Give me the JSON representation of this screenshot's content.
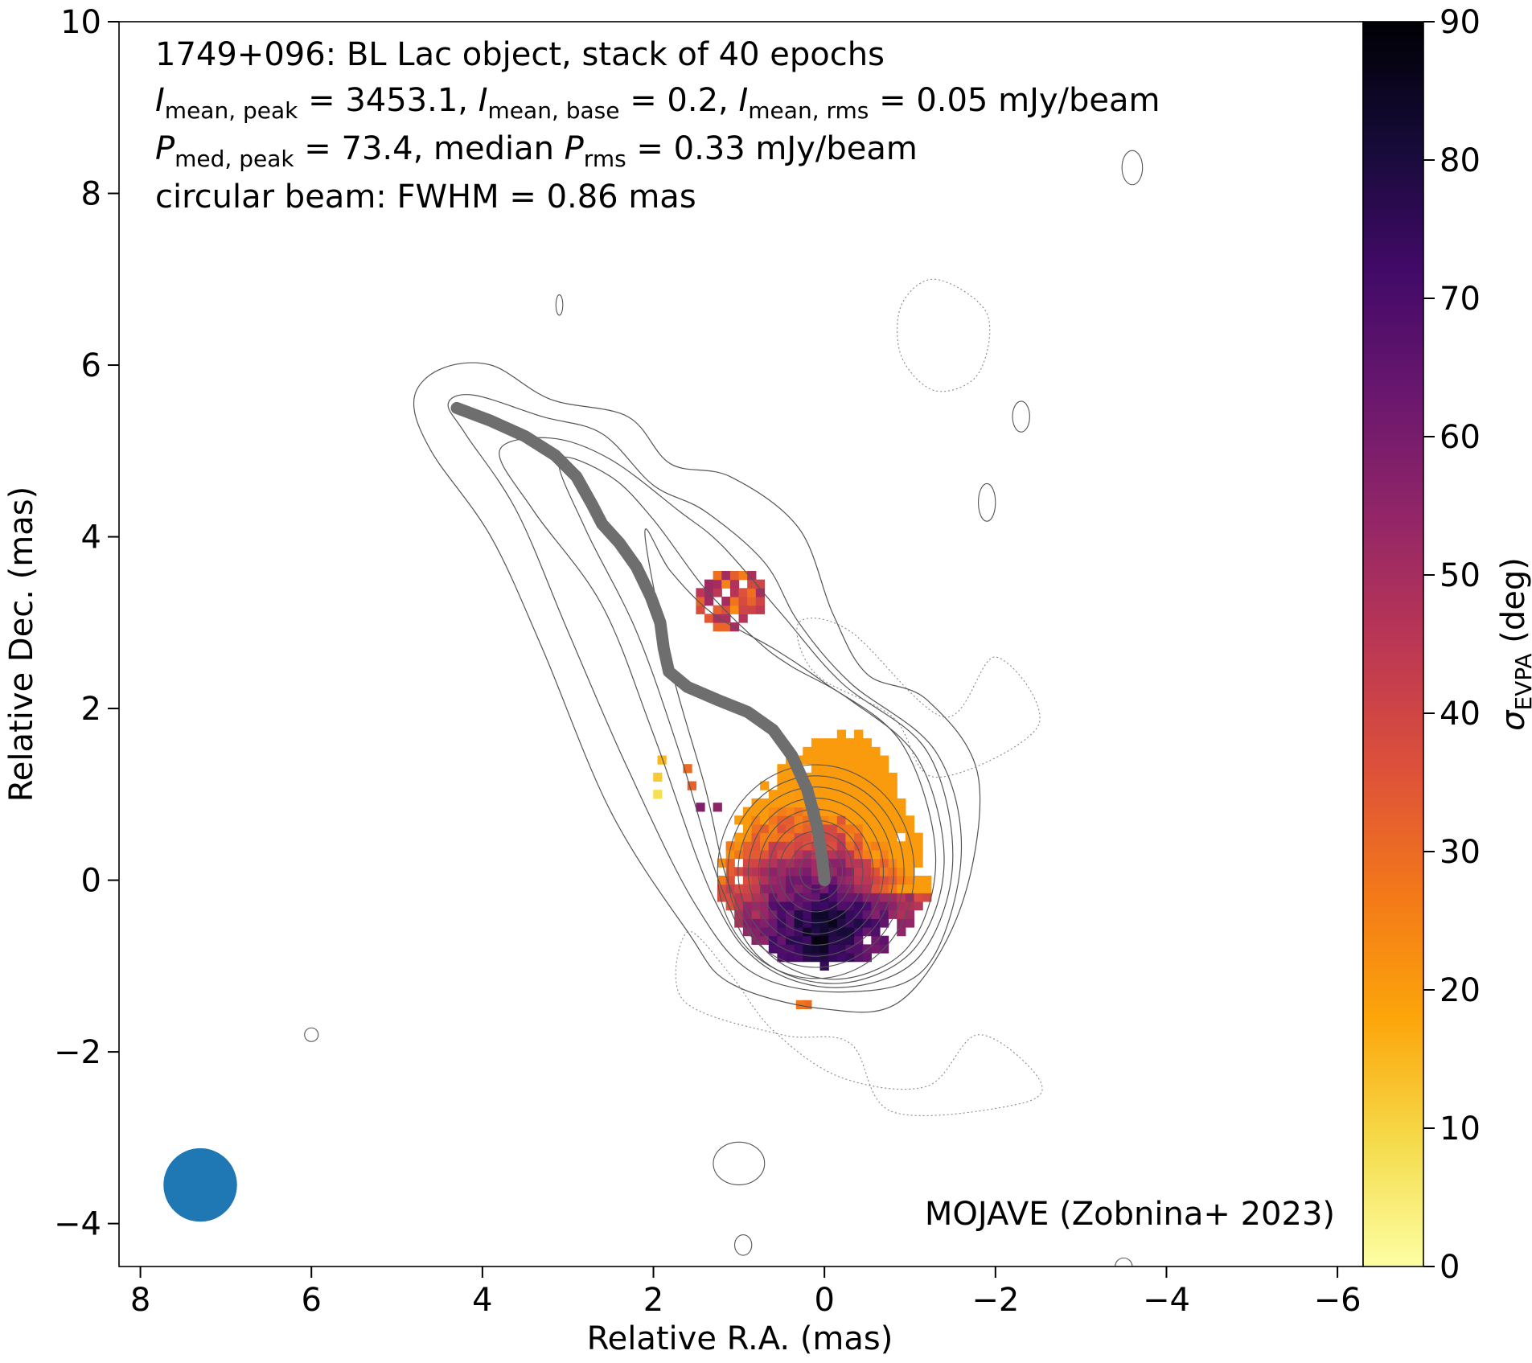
{
  "chart_data": {
    "type": "heatmap",
    "title_lines": [
      "1749+096: BL Lac object, stack of 40 epochs",
      "I_mean,peak = 3453.1, I_mean,base = 0.2, I_mean,rms = 0.05 mJy/beam",
      "P_med,peak = 73.4, median P_rms = 0.33 mJy/beam",
      "circular beam: FWHM = 0.86 mas"
    ],
    "title_parts": {
      "line1": "1749+096: BL Lac object, stack of 40 epochs",
      "i_sym": "I",
      "i_peak_sub": "mean, peak",
      "i_peak_val": " = 3453.1, ",
      "i_base_sub": "mean, base",
      "i_base_val": " = 0.2, ",
      "i_rms_sub": "mean, rms",
      "i_rms_val": " = 0.05 mJy/beam",
      "p_sym": "P",
      "p_peak_sub": "med, peak",
      "p_peak_val": " = 73.4, median ",
      "p_rms_sub": "rms",
      "p_rms_val": " = 0.33 mJy/beam",
      "line4": "circular beam: FWHM = 0.86 mas"
    },
    "xlabel": "Relative R.A. (mas)",
    "ylabel": "Relative Dec. (mas)",
    "xlim": [
      8.25,
      -6.3
    ],
    "ylim": [
      -4.5,
      10
    ],
    "xticks": [
      8,
      6,
      4,
      2,
      0,
      -2,
      -4,
      -6
    ],
    "yticks": [
      -4,
      -2,
      0,
      2,
      4,
      6,
      8,
      10
    ],
    "xtick_labels": [
      "8",
      "6",
      "4",
      "2",
      "0",
      "−2",
      "−4",
      "−6"
    ],
    "ytick_labels": [
      "−4",
      "−2",
      "0",
      "2",
      "4",
      "6",
      "8",
      "10"
    ],
    "colorbar": {
      "label_symbol": "σ",
      "label_sub": "EVPA",
      "label_unit": " (deg)",
      "range": [
        0,
        90
      ],
      "ticks": [
        0,
        10,
        20,
        30,
        40,
        50,
        60,
        70,
        80,
        90
      ],
      "colormap": "inferno_r"
    },
    "annotation": "MOJAVE (Zobnina+ 2023)",
    "beam": {
      "x": 7.3,
      "y": -3.55,
      "fwhm_mas": 0.86,
      "color": "#1f77b4"
    },
    "ridge_line": {
      "color": "#6e6e6e",
      "points": [
        [
          4.3,
          5.5
        ],
        [
          3.9,
          5.35
        ],
        [
          3.5,
          5.17
        ],
        [
          3.15,
          4.95
        ],
        [
          2.9,
          4.7
        ],
        [
          2.72,
          4.38
        ],
        [
          2.6,
          4.15
        ],
        [
          2.4,
          3.93
        ],
        [
          2.2,
          3.65
        ],
        [
          2.03,
          3.3
        ],
        [
          1.92,
          3.0
        ],
        [
          1.88,
          2.7
        ],
        [
          1.82,
          2.43
        ],
        [
          1.6,
          2.25
        ],
        [
          1.25,
          2.1
        ],
        [
          0.9,
          1.96
        ],
        [
          0.6,
          1.75
        ],
        [
          0.38,
          1.45
        ],
        [
          0.2,
          1.05
        ],
        [
          0.08,
          0.6
        ],
        [
          0.02,
          0.2
        ],
        [
          0.0,
          0.0
        ]
      ]
    },
    "contours": {
      "solid_levels": 14,
      "color": "#555555",
      "core_center": [
        0.05,
        0.05
      ]
    },
    "evpa_sigma_map": {
      "description_units": "deg",
      "core_region": {
        "center": [
          0.0,
          0.1
        ],
        "semi_ra": 1.25,
        "semi_dec": 1.1
      },
      "dark_region_center": [
        0.0,
        -0.6
      ],
      "high_value_max": 88,
      "low_value_min": 25,
      "knot_region": {
        "center": [
          1.05,
          3.25
        ],
        "mean_sigma": 35
      },
      "isolated_pixels": [
        [
          1.9,
          1.4,
          15
        ],
        [
          1.6,
          1.3,
          30
        ],
        [
          1.55,
          1.1,
          32
        ],
        [
          1.45,
          0.85,
          58
        ],
        [
          1.25,
          0.85,
          55
        ],
        [
          0.2,
          -1.45,
          30
        ],
        [
          0.28,
          -1.45,
          28
        ],
        [
          1.95,
          1.0,
          8
        ],
        [
          1.95,
          1.2,
          12
        ]
      ]
    }
  }
}
